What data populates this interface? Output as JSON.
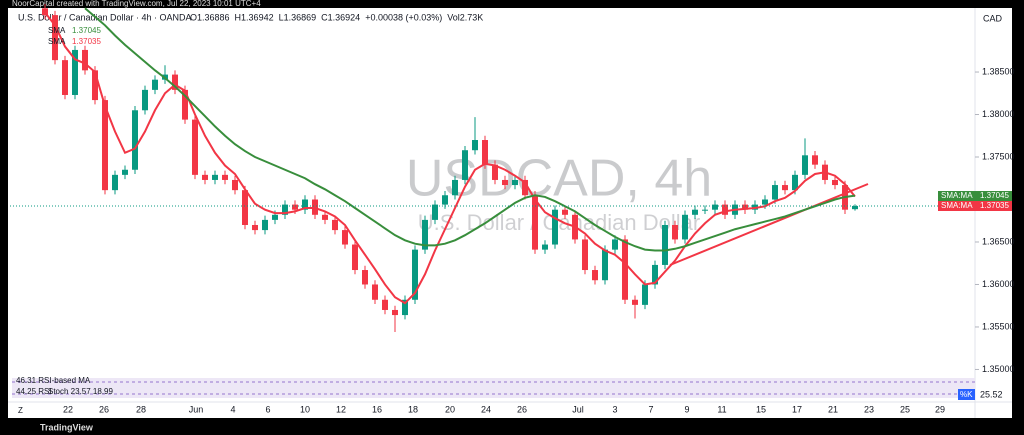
{
  "header": {
    "credit": "NoorCapital created with TradingView.com, Jul 22, 2023 10:01 UTC+4",
    "symbol": "U.S. Dollar / Canadian Dollar · 4h · OANDA",
    "quote": [
      "O1.36886",
      "H1.36942",
      "L1.36869",
      "C1.36924",
      "+0.00038 (+0.03%)",
      "Vol2.73K"
    ],
    "currency": "CAD",
    "watermark": "USDCAD, 4h",
    "watermark_sub": "U.S. Dollar / Canadian Dollar"
  },
  "chart_data": {
    "type": "candlestick",
    "up_color": "#089981",
    "down_color": "#f23645",
    "open": [
      1.3925,
      1.3917,
      1.3864,
      1.3823,
      1.3876,
      1.3852,
      1.3817,
      1.3711,
      1.3729,
      1.3735,
      1.3805,
      1.3829,
      1.3841,
      1.3847,
      1.3829,
      1.3794,
      1.3729,
      1.3723,
      1.3729,
      1.3723,
      1.3711,
      1.367,
      1.3664,
      1.3676,
      1.3682,
      1.3694,
      1.3688,
      1.37,
      1.3682,
      1.3676,
      1.3664,
      1.3647,
      1.3617,
      1.36,
      1.3582,
      1.357,
      1.3564,
      1.3582,
      1.3641,
      1.3676,
      1.3694,
      1.3705,
      1.3723,
      1.3758,
      1.377,
      1.3741,
      1.3723,
      1.3717,
      1.3723,
      1.3705,
      1.3641,
      1.3647,
      1.3688,
      1.3682,
      1.3653,
      1.3617,
      1.3605,
      1.3641,
      1.3653,
      1.3582,
      1.3576,
      1.36,
      1.3623,
      1.367,
      1.3653,
      1.3682,
      1.3688,
      1.3688,
      1.3694,
      1.3682,
      1.3694,
      1.3688,
      1.3694,
      1.37,
      1.3717,
      1.3711,
      1.3729,
      1.3752,
      1.3741,
      1.3723,
      1.3717,
      1.36886
    ],
    "high": [
      1.393,
      1.3922,
      1.3869,
      1.3881,
      1.3881,
      1.3857,
      1.3822,
      1.3734,
      1.374,
      1.381,
      1.3834,
      1.3846,
      1.3858,
      1.3852,
      1.3834,
      1.3799,
      1.3734,
      1.3734,
      1.3734,
      1.3728,
      1.3716,
      1.3675,
      1.3681,
      1.3687,
      1.3699,
      1.3699,
      1.3705,
      1.3705,
      1.3687,
      1.3681,
      1.3669,
      1.3652,
      1.3622,
      1.3605,
      1.3587,
      1.3575,
      1.3587,
      1.3646,
      1.3681,
      1.3699,
      1.371,
      1.3728,
      1.3763,
      1.3797,
      1.3775,
      1.3746,
      1.3728,
      1.3728,
      1.3728,
      1.371,
      1.3652,
      1.3693,
      1.3693,
      1.3687,
      1.3658,
      1.3622,
      1.3646,
      1.3658,
      1.3658,
      1.3587,
      1.3605,
      1.3628,
      1.3675,
      1.3675,
      1.3687,
      1.3693,
      1.3693,
      1.3699,
      1.3699,
      1.3699,
      1.3699,
      1.3699,
      1.3705,
      1.3722,
      1.3722,
      1.3734,
      1.3772,
      1.3757,
      1.3746,
      1.3728,
      1.3722,
      1.36942
    ],
    "low": [
      1.3912,
      1.3859,
      1.3818,
      1.3818,
      1.3847,
      1.3812,
      1.3706,
      1.3706,
      1.3724,
      1.373,
      1.38,
      1.3824,
      1.3836,
      1.3824,
      1.3789,
      1.3724,
      1.3718,
      1.3718,
      1.3718,
      1.3706,
      1.3665,
      1.3659,
      1.3659,
      1.3671,
      1.3677,
      1.3683,
      1.3683,
      1.3677,
      1.3671,
      1.3659,
      1.3642,
      1.3612,
      1.3595,
      1.3577,
      1.3565,
      1.3544,
      1.3559,
      1.3577,
      1.3636,
      1.3671,
      1.3689,
      1.37,
      1.3718,
      1.3753,
      1.3736,
      1.3718,
      1.3712,
      1.3712,
      1.37,
      1.3636,
      1.3636,
      1.3642,
      1.3677,
      1.3648,
      1.3612,
      1.36,
      1.36,
      1.3636,
      1.3577,
      1.356,
      1.3571,
      1.3595,
      1.3618,
      1.3648,
      1.3648,
      1.3677,
      1.3683,
      1.3683,
      1.3677,
      1.3677,
      1.3683,
      1.3683,
      1.3689,
      1.3695,
      1.3706,
      1.3706,
      1.3724,
      1.3736,
      1.3718,
      1.3712,
      1.3683,
      1.36869
    ],
    "close": [
      1.3917,
      1.3864,
      1.3823,
      1.3876,
      1.3852,
      1.3817,
      1.3711,
      1.3729,
      1.3735,
      1.3805,
      1.3829,
      1.3841,
      1.3847,
      1.3829,
      1.3794,
      1.3729,
      1.3723,
      1.3729,
      1.3723,
      1.3711,
      1.367,
      1.3664,
      1.3676,
      1.3682,
      1.3694,
      1.3688,
      1.37,
      1.3682,
      1.3676,
      1.3664,
      1.3647,
      1.3617,
      1.36,
      1.3582,
      1.357,
      1.3564,
      1.3582,
      1.3641,
      1.3676,
      1.3694,
      1.3705,
      1.3723,
      1.3758,
      1.377,
      1.3741,
      1.3723,
      1.3717,
      1.3723,
      1.3705,
      1.3641,
      1.3647,
      1.3688,
      1.3682,
      1.3653,
      1.3617,
      1.3605,
      1.3641,
      1.3653,
      1.3582,
      1.3576,
      1.36,
      1.3623,
      1.367,
      1.3653,
      1.3682,
      1.3688,
      1.3688,
      1.3694,
      1.3682,
      1.3694,
      1.3688,
      1.3694,
      1.37,
      1.3717,
      1.3711,
      1.3729,
      1.3752,
      1.3741,
      1.3723,
      1.3717,
      1.3688,
      1.36924
    ],
    "series": [
      {
        "name": "SMA",
        "tag": "SMA:MA",
        "last_label": "1.37035",
        "color": "#f23645",
        "values": [
          1.392,
          1.3905,
          1.388,
          1.3865,
          1.386,
          1.385,
          1.381,
          1.378,
          1.3755,
          1.376,
          1.378,
          1.3805,
          1.3825,
          1.3835,
          1.3828,
          1.38,
          1.3775,
          1.3755,
          1.374,
          1.373,
          1.3712,
          1.3695,
          1.3688,
          1.3684,
          1.3684,
          1.3686,
          1.369,
          1.369,
          1.3686,
          1.368,
          1.367,
          1.3652,
          1.3635,
          1.3618,
          1.36,
          1.3585,
          1.3578,
          1.359,
          1.3612,
          1.364,
          1.3665,
          1.369,
          1.3715,
          1.3735,
          1.3742,
          1.374,
          1.3735,
          1.3728,
          1.372,
          1.37,
          1.3685,
          1.3678,
          1.3672,
          1.3668,
          1.366,
          1.3648,
          1.364,
          1.3635,
          1.3625,
          1.3612,
          1.36,
          1.3602,
          1.3615,
          1.3628,
          1.3645,
          1.366,
          1.3672,
          1.3682,
          1.3686,
          1.3688,
          1.3689,
          1.369,
          1.3692,
          1.3698,
          1.3702,
          1.371,
          1.3722,
          1.373,
          1.3732,
          1.3728,
          1.3718,
          1.37035
        ]
      },
      {
        "name": "SMA",
        "tag": "SMA:MA",
        "last_label": "1.37045",
        "color": "#388e3c",
        "values": [
          null,
          null,
          null,
          null,
          1.3925,
          1.3915,
          1.3905,
          1.3893,
          1.3882,
          1.3872,
          1.3862,
          1.3852,
          1.3843,
          1.3833,
          1.3822,
          1.381,
          1.3798,
          1.3786,
          1.3775,
          1.3765,
          1.3757,
          1.375,
          1.3745,
          1.374,
          1.3735,
          1.373,
          1.3725,
          1.3718,
          1.3712,
          1.3705,
          1.3698,
          1.369,
          1.3682,
          1.3674,
          1.3666,
          1.3658,
          1.3652,
          1.3648,
          1.3646,
          1.3646,
          1.3648,
          1.3652,
          1.3658,
          1.3665,
          1.3672,
          1.368,
          1.3688,
          1.3696,
          1.3702,
          1.3705,
          1.3703,
          1.3698,
          1.3692,
          1.3686,
          1.3678,
          1.367,
          1.3663,
          1.3656,
          1.365,
          1.3645,
          1.3641,
          1.364,
          1.364,
          1.3642,
          1.3645,
          1.3649,
          1.3653,
          1.3657,
          1.3661,
          1.3665,
          1.3668,
          1.3671,
          1.3674,
          1.3677,
          1.368,
          1.3684,
          1.3688,
          1.3692,
          1.3696,
          1.37,
          1.3703,
          1.37045
        ]
      }
    ],
    "ylim": [
      1.3497,
      1.3923
    ],
    "yticks": [
      {
        "value": 1.35,
        "label": "1.35000"
      },
      {
        "value": 1.355,
        "label": "1.35500"
      },
      {
        "value": 1.36,
        "label": "1.36000"
      },
      {
        "value": 1.365,
        "label": "1.36500"
      },
      {
        "value": 1.375,
        "label": "1.37500"
      },
      {
        "value": 1.38,
        "label": "1.38000"
      },
      {
        "value": 1.385,
        "label": "1.38500"
      }
    ],
    "x_labels": [
      "22",
      "26",
      "28",
      "Jun",
      "4",
      "6",
      "10",
      "12",
      "16",
      "18",
      "20",
      "24",
      "26",
      "Jul",
      "3",
      "7",
      "9",
      "11",
      "15",
      "17",
      "21",
      "23",
      "25",
      "29"
    ]
  },
  "indicator": {
    "legend": [
      "46.31 RSI-based MA",
      "44.25 RSI",
      "Stoch 23.57 18.99"
    ],
    "tag": "%K",
    "value": "25.52"
  },
  "footer": {
    "logo": "TradingView",
    "zoom": "Z"
  }
}
